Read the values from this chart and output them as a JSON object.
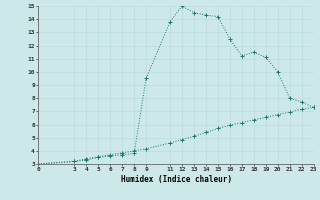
{
  "xlabel": "Humidex (Indice chaleur)",
  "background_color": "#cde8e8",
  "line_color": "#1a7a6e",
  "xlim": [
    0,
    23
  ],
  "ylim": [
    3,
    15
  ],
  "xticks": [
    0,
    3,
    4,
    5,
    6,
    7,
    8,
    9,
    11,
    12,
    13,
    14,
    15,
    16,
    17,
    18,
    19,
    20,
    21,
    22,
    23
  ],
  "yticks": [
    3,
    4,
    5,
    6,
    7,
    8,
    9,
    10,
    11,
    12,
    13,
    14,
    15
  ],
  "line1_x": [
    0,
    3,
    4,
    5,
    6,
    7,
    8,
    9,
    11,
    12,
    13,
    14,
    15,
    16,
    17,
    18,
    19,
    20,
    21,
    22,
    23
  ],
  "line1_y": [
    3.0,
    3.2,
    3.4,
    3.55,
    3.7,
    3.85,
    4.0,
    4.15,
    4.6,
    4.85,
    5.1,
    5.4,
    5.7,
    5.95,
    6.15,
    6.35,
    6.55,
    6.75,
    6.95,
    7.15,
    7.3
  ],
  "line2_x": [
    0,
    3,
    4,
    5,
    6,
    7,
    8,
    9,
    11,
    12,
    13,
    14,
    15,
    16,
    17,
    18,
    19,
    20,
    21,
    22,
    23
  ],
  "line2_y": [
    3.0,
    3.2,
    3.3,
    3.5,
    3.6,
    3.7,
    3.8,
    9.5,
    13.8,
    15.0,
    14.5,
    14.3,
    14.2,
    12.5,
    11.2,
    11.5,
    11.1,
    10.0,
    8.0,
    7.7,
    7.3
  ]
}
